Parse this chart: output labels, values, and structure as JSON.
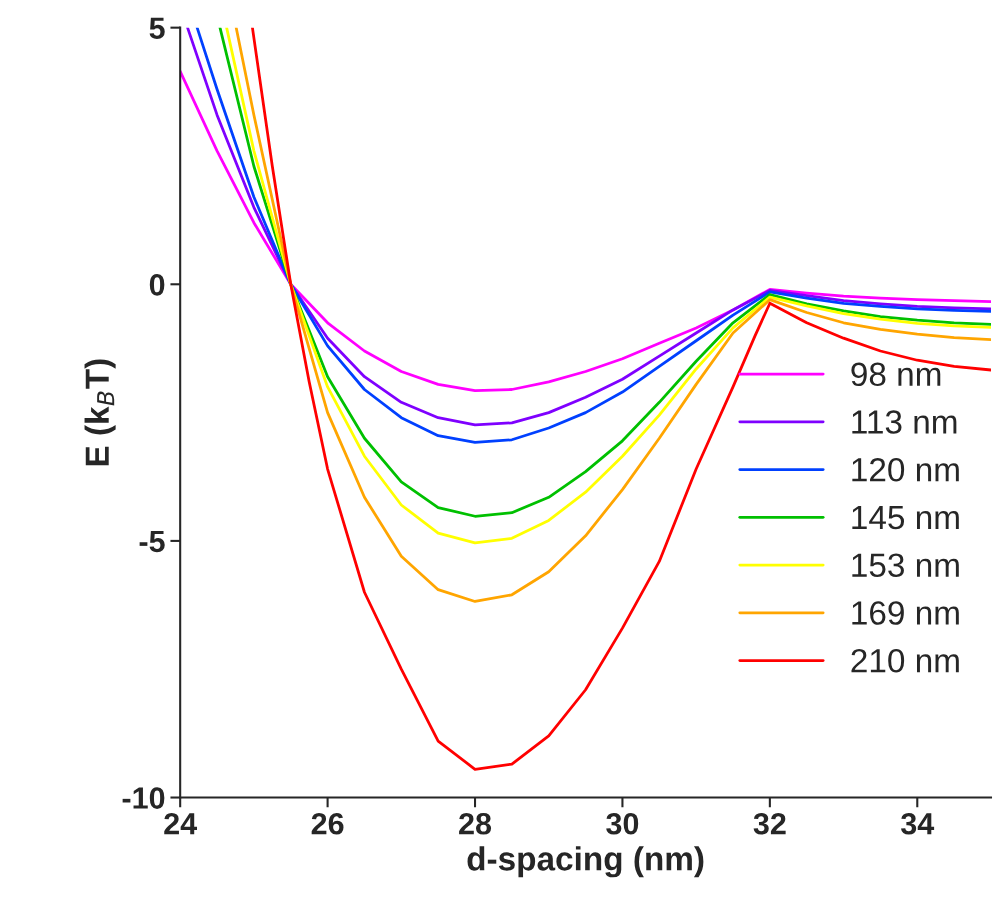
{
  "chart_data": {
    "type": "line",
    "xlabel": "d-spacing (nm)",
    "ylabel": "E (k$_{B}$T)",
    "xlim": [
      24,
      35
    ],
    "ylim": [
      -10,
      5
    ],
    "xticks": [
      24,
      26,
      28,
      30,
      32,
      34
    ],
    "yticks": [
      -10,
      -5,
      0,
      5
    ],
    "grid": false,
    "legend": "right",
    "line_style": "solid",
    "marker": "none",
    "series": [
      {
        "name": "98 nm",
        "color": "#ff00ff",
        "x": [
          24,
          24.5,
          25,
          25.5,
          26,
          26.5,
          27,
          27.5,
          28,
          28.5,
          29,
          29.5,
          30,
          30.5,
          31,
          31.5,
          32,
          32.5,
          33,
          33.5,
          34,
          34.5,
          35
        ],
        "values": [
          4.15,
          2.6,
          1.2,
          0,
          -0.75,
          -1.3,
          -1.7,
          -1.95,
          -2.07,
          -2.05,
          -1.9,
          -1.7,
          -1.45,
          -1.15,
          -0.85,
          -0.5,
          -0.1,
          -0.17,
          -0.23,
          -0.27,
          -0.3,
          -0.32,
          -0.34
        ]
      },
      {
        "name": "113 nm",
        "color": "#7f00ff",
        "x": [
          24.1,
          24.5,
          25,
          25.5,
          26,
          26.5,
          27,
          27.5,
          28,
          28.5,
          29,
          29.5,
          30,
          30.5,
          31,
          31.5,
          32,
          32.5,
          33,
          33.5,
          34,
          34.5,
          35
        ],
        "values": [
          5,
          3.3,
          1.5,
          0,
          -1.05,
          -1.8,
          -2.3,
          -2.6,
          -2.74,
          -2.7,
          -2.5,
          -2.2,
          -1.85,
          -1.4,
          -0.95,
          -0.5,
          -0.12,
          -0.22,
          -0.32,
          -0.38,
          -0.43,
          -0.46,
          -0.48
        ]
      },
      {
        "name": "120 nm",
        "color": "#0040ff",
        "x": [
          24.23,
          24.5,
          25,
          25.5,
          26,
          26.5,
          27,
          27.5,
          28,
          28.5,
          29,
          29.5,
          30,
          30.5,
          31,
          31.5,
          32,
          32.5,
          33,
          33.5,
          34,
          34.5,
          35
        ],
        "values": [
          5,
          3.8,
          1.7,
          0,
          -1.2,
          -2.05,
          -2.6,
          -2.95,
          -3.08,
          -3.03,
          -2.8,
          -2.5,
          -2.1,
          -1.6,
          -1.1,
          -0.6,
          -0.15,
          -0.27,
          -0.37,
          -0.43,
          -0.48,
          -0.51,
          -0.53
        ]
      },
      {
        "name": "145 nm",
        "color": "#00c000",
        "x": [
          24.54,
          25,
          25.5,
          26,
          26.5,
          27,
          27.5,
          28,
          28.5,
          29,
          29.5,
          30,
          30.5,
          31,
          31.5,
          32,
          32.5,
          33,
          33.5,
          34,
          34.5,
          35
        ],
        "values": [
          5,
          2.3,
          0,
          -1.8,
          -3.0,
          -3.85,
          -4.35,
          -4.52,
          -4.45,
          -4.15,
          -3.65,
          -3.05,
          -2.3,
          -1.5,
          -0.75,
          -0.2,
          -0.38,
          -0.52,
          -0.63,
          -0.7,
          -0.75,
          -0.78
        ]
      },
      {
        "name": "153 nm",
        "color": "#ffff00",
        "x": [
          24.63,
          25,
          25.5,
          26,
          26.5,
          27,
          27.5,
          28,
          28.5,
          29,
          29.5,
          30,
          30.5,
          31,
          31.5,
          32,
          32.5,
          33,
          33.5,
          34,
          34.5,
          35
        ],
        "values": [
          5,
          2.6,
          0,
          -2.0,
          -3.35,
          -4.3,
          -4.85,
          -5.04,
          -4.95,
          -4.6,
          -4.05,
          -3.35,
          -2.55,
          -1.65,
          -0.85,
          -0.25,
          -0.42,
          -0.57,
          -0.68,
          -0.76,
          -0.81,
          -0.84
        ]
      },
      {
        "name": "169 nm",
        "color": "#ffa500",
        "x": [
          24.76,
          25,
          25.5,
          26,
          26.5,
          27,
          27.5,
          28,
          28.5,
          29,
          29.5,
          30,
          30.5,
          31,
          31.5,
          32,
          32.5,
          33,
          33.5,
          34,
          34.5,
          35
        ],
        "values": [
          5,
          3.3,
          0,
          -2.5,
          -4.15,
          -5.3,
          -5.95,
          -6.18,
          -6.05,
          -5.6,
          -4.9,
          -4.0,
          -3.0,
          -1.95,
          -0.95,
          -0.3,
          -0.55,
          -0.75,
          -0.88,
          -0.97,
          -1.04,
          -1.08
        ]
      },
      {
        "name": "210 nm",
        "color": "#ff0000",
        "x": [
          24.98,
          25.25,
          25.5,
          25.75,
          26,
          26.5,
          27,
          27.5,
          28,
          28.5,
          29,
          29.5,
          30,
          30.5,
          31,
          31.5,
          31.8,
          32,
          32.5,
          33,
          33.5,
          34,
          34.5,
          35
        ],
        "values": [
          5,
          2.3,
          0,
          -1.9,
          -3.6,
          -6.0,
          -7.5,
          -8.9,
          -9.45,
          -9.35,
          -8.8,
          -7.9,
          -6.7,
          -5.4,
          -3.6,
          -2.0,
          -1.0,
          -0.37,
          -0.75,
          -1.05,
          -1.3,
          -1.48,
          -1.6,
          -1.67
        ]
      }
    ]
  }
}
